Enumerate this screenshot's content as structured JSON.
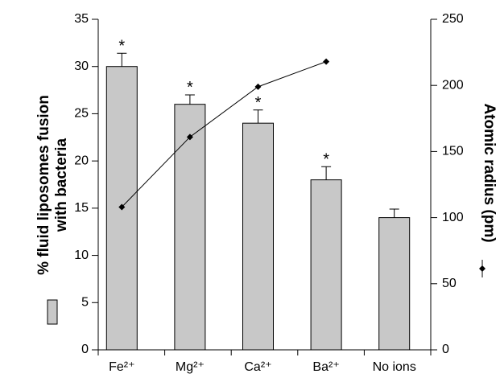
{
  "chart_data": {
    "type": "bar",
    "categories": [
      "Fe²⁺",
      "Mg²⁺",
      "Ca²⁺",
      "Ba²⁺",
      "No ions"
    ],
    "series": [
      {
        "type": "bar",
        "color": "#c8c8c8",
        "values": [
          30,
          26,
          24,
          18,
          14
        ],
        "errors": [
          1.4,
          1,
          1.4,
          1.4,
          0.9
        ],
        "annotations": [
          "*",
          "*",
          "*",
          "*",
          null
        ]
      },
      {
        "type": "line",
        "axis": "y2",
        "color": "#000000",
        "values": [
          108,
          161,
          199,
          218,
          null
        ]
      }
    ],
    "ylim": [
      0,
      35
    ],
    "yticks": [
      0,
      5,
      10,
      15,
      20,
      25,
      30,
      35
    ],
    "y2lim": [
      0,
      250
    ],
    "y2ticks": [
      0,
      50,
      100,
      150,
      200,
      250
    ],
    "ylabel": [
      "% fluid liposomes fusion",
      "with bacteria"
    ],
    "y2label": "Atomic radius (pm)",
    "grid": false
  }
}
